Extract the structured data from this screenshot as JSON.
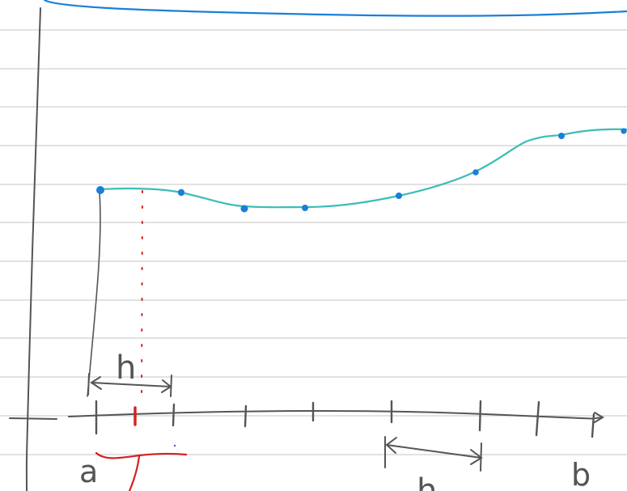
{
  "labels": {
    "a": "a",
    "b": "b",
    "h_top": "h",
    "h_bottom": "h"
  },
  "colors": {
    "ruled_lines": "#d0d0d0",
    "ink": "#555555",
    "blue_curve": "#1a7fd9",
    "teal_curve": "#3dbcb6",
    "points": "#1a7fd9",
    "red": "#d42020"
  }
}
